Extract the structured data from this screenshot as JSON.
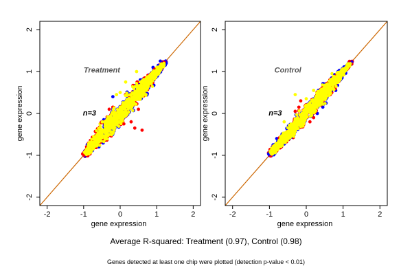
{
  "caption": {
    "main": "Average R-squared: Treatment (0.97), Control (0.98)",
    "note": "Genes detected at least one chip were plotted (detection p-value < 0.01)"
  },
  "chart_data": [
    {
      "type": "scatter",
      "title": "Treatment",
      "annotation": "n=3",
      "xlabel": "gene expression",
      "ylabel": "gene expression",
      "xlim": [
        -2.2,
        2.2
      ],
      "ylim": [
        -2.2,
        2.2
      ],
      "xticks": [
        -2,
        -1,
        0,
        1,
        2
      ],
      "yticks": [
        -2,
        -1,
        0,
        1,
        2
      ],
      "reference_line": {
        "slope": 1,
        "intercept": 0,
        "color": "#cc6600"
      },
      "grid": false,
      "cloud": {
        "center": [
          0.05,
          0.05
        ],
        "range": [
          -1.0,
          1.25
        ],
        "spread": 0.18
      },
      "series": [
        {
          "color": "#0000ff",
          "points": [
            [
              -0.95,
              -1.0
            ],
            [
              -0.6,
              -0.7
            ],
            [
              -0.45,
              -0.15
            ],
            [
              -0.2,
              0.4
            ],
            [
              0.3,
              0.4
            ],
            [
              0.55,
              0.8
            ],
            [
              0.9,
              1.1
            ],
            [
              1.1,
              1.25
            ],
            [
              -0.7,
              -0.55
            ],
            [
              0.6,
              0.5
            ]
          ]
        },
        {
          "color": "#ff0000",
          "points": [
            [
              -0.3,
              0.1
            ],
            [
              0.3,
              -0.2
            ],
            [
              0.5,
              0.1
            ],
            [
              -0.5,
              -0.6
            ],
            [
              -0.8,
              -0.7
            ],
            [
              0.8,
              0.7
            ],
            [
              0.6,
              -0.4
            ],
            [
              -0.35,
              -0.3
            ],
            [
              0.1,
              -0.25
            ],
            [
              0.95,
              1.05
            ],
            [
              -0.2,
              0.15
            ],
            [
              0.4,
              -0.35
            ],
            [
              0.2,
              0.2
            ],
            [
              -0.6,
              -0.75
            ],
            [
              1.05,
              1.15
            ]
          ]
        },
        {
          "color": "#ffff00",
          "points": [
            [
              -0.1,
              0.45
            ],
            [
              0.15,
              0.75
            ],
            [
              0.45,
              1.0
            ],
            [
              -0.55,
              -0.25
            ],
            [
              0.75,
              0.85
            ],
            [
              0.0,
              0.5
            ]
          ]
        }
      ]
    },
    {
      "type": "scatter",
      "title": "Control",
      "annotation": "n=3",
      "xlabel": "gene expression",
      "ylabel": "gene expression",
      "xlim": [
        -2.2,
        2.2
      ],
      "ylim": [
        -2.2,
        2.2
      ],
      "xticks": [
        -2,
        -1,
        0,
        1,
        2
      ],
      "yticks": [
        -2,
        -1,
        0,
        1,
        2
      ],
      "reference_line": {
        "slope": 1,
        "intercept": 0,
        "color": "#cc6600"
      },
      "grid": false,
      "cloud": {
        "center": [
          0.05,
          0.05
        ],
        "range": [
          -1.0,
          1.25
        ],
        "spread": 0.14
      },
      "series": [
        {
          "color": "#0000ff",
          "points": [
            [
              -0.9,
              -0.75
            ],
            [
              -0.8,
              -0.6
            ],
            [
              -0.4,
              -0.45
            ],
            [
              0.3,
              0.0
            ],
            [
              0.45,
              0.15
            ],
            [
              0.6,
              0.6
            ],
            [
              0.7,
              0.75
            ],
            [
              0.9,
              0.9
            ],
            [
              1.1,
              1.15
            ],
            [
              -0.65,
              -0.5
            ],
            [
              0.5,
              0.35
            ],
            [
              0.8,
              0.55
            ],
            [
              -0.85,
              -0.95
            ],
            [
              0.25,
              0.4
            ]
          ]
        },
        {
          "color": "#ff0000",
          "points": [
            [
              -0.3,
              0.05
            ],
            [
              -0.2,
              0.15
            ],
            [
              0.1,
              -0.2
            ],
            [
              0.2,
              -0.1
            ],
            [
              -0.5,
              -0.4
            ],
            [
              0.4,
              0.2
            ],
            [
              -0.15,
              0.3
            ]
          ]
        },
        {
          "color": "#ffff00",
          "points": [
            [
              -0.3,
              0.45
            ],
            [
              0.2,
              0.55
            ],
            [
              -0.6,
              -0.2
            ],
            [
              0.7,
              0.95
            ],
            [
              0.0,
              0.35
            ]
          ]
        }
      ]
    }
  ]
}
